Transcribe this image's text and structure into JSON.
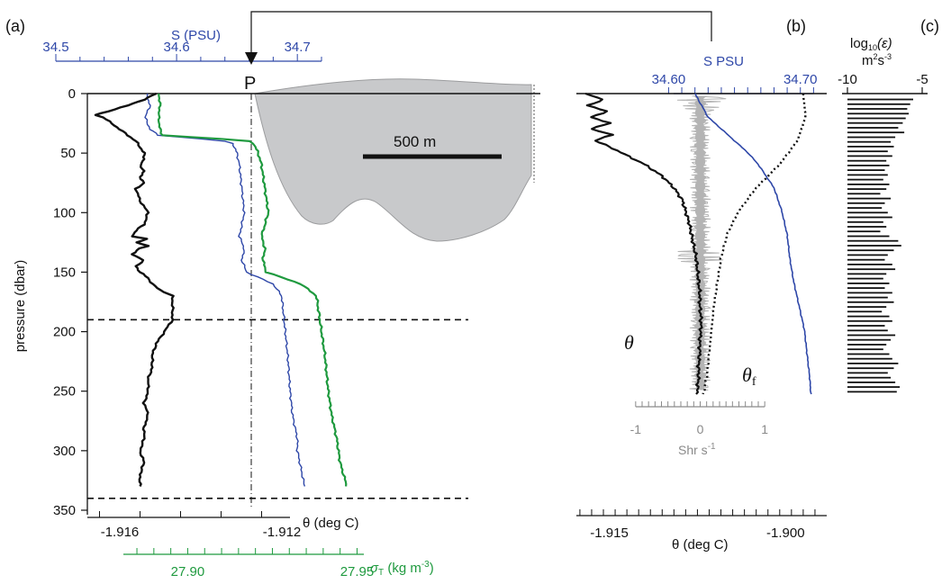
{
  "panel_labels": {
    "a": "(a)",
    "b": "(b)",
    "c": "(c)"
  },
  "colors": {
    "theta": "#111111",
    "salinity": "#2e47a8",
    "sigma": "#1f9a3f",
    "shear": "#b4b4b4",
    "ice": "#c8c9cb"
  },
  "chart_data": [
    {
      "type": "line",
      "panel": "(a)",
      "ylabel": "pressure (dbar)",
      "ylim": [
        350,
        0
      ],
      "yticks": [
        "0",
        "50",
        "100",
        "150",
        "200",
        "250",
        "300",
        "350"
      ],
      "x_theta": {
        "label": "θ (deg C)",
        "ticks": [
          "-1.916",
          "-1.912"
        ],
        "range": [
          -1.9168,
          -1.9118
        ]
      },
      "x_salinity": {
        "label": "S (PSU)",
        "ticks": [
          "34.5",
          "34.6",
          "34.7"
        ],
        "range": [
          34.5,
          34.72
        ]
      },
      "x_sigma": {
        "label": "σT (kg m-3)",
        "ticks": [
          "27.90",
          "27.95"
        ],
        "range": [
          27.881,
          27.952
        ]
      },
      "marker": {
        "label": "P",
        "theta": -1.9123
      },
      "hlines_dbar": [
        190,
        340
      ],
      "ice_inset": {
        "scale_label": "500 m"
      },
      "series": [
        {
          "name": "θ",
          "axis": "theta",
          "p": [
            0,
            5,
            10,
            15,
            18,
            20,
            25,
            30,
            35,
            40,
            45,
            50,
            55,
            60,
            65,
            70,
            75,
            80,
            90,
            100,
            110,
            115,
            120,
            122,
            125,
            128,
            130,
            135,
            140,
            145,
            150,
            155,
            160,
            165,
            170,
            180,
            190,
            200,
            210,
            220,
            230,
            240,
            250,
            260,
            270,
            280,
            290,
            300,
            310,
            320,
            330
          ],
          "values": [
            -1.9151,
            -1.9154,
            -1.9158,
            -1.9163,
            -1.9166,
            -1.9164,
            -1.9162,
            -1.916,
            -1.9158,
            -1.9156,
            -1.9155,
            -1.9154,
            -1.9154,
            -1.9155,
            -1.9154,
            -1.9155,
            -1.9154,
            -1.9156,
            -1.9155,
            -1.9153,
            -1.9154,
            -1.9156,
            -1.9157,
            -1.9153,
            -1.9156,
            -1.9153,
            -1.9155,
            -1.9157,
            -1.9154,
            -1.9156,
            -1.9155,
            -1.9153,
            -1.9152,
            -1.915,
            -1.9147,
            -1.9147,
            -1.9147,
            -1.9149,
            -1.9151,
            -1.9152,
            -1.9152,
            -1.9153,
            -1.9153,
            -1.9154,
            -1.9153,
            -1.9154,
            -1.9154,
            -1.9155,
            -1.9154,
            -1.9155,
            -1.9155
          ]
        },
        {
          "name": "S",
          "axis": "salinity",
          "p": [
            0,
            10,
            20,
            30,
            35,
            38,
            40,
            42,
            45,
            50,
            60,
            80,
            100,
            120,
            130,
            140,
            150,
            160,
            170,
            180,
            200,
            220,
            250,
            270,
            290,
            300,
            310,
            320,
            330
          ],
          "values": [
            34.575,
            34.578,
            34.574,
            34.578,
            34.585,
            34.62,
            34.64,
            34.646,
            34.648,
            34.65,
            34.652,
            34.654,
            34.656,
            34.652,
            34.656,
            34.654,
            34.658,
            34.68,
            34.687,
            34.688,
            34.69,
            34.692,
            34.694,
            34.696,
            34.7,
            34.7,
            34.702,
            34.704,
            34.706
          ]
        },
        {
          "name": "σT",
          "axis": "sigma",
          "p": [
            0,
            10,
            20,
            30,
            35,
            38,
            40,
            42,
            45,
            50,
            60,
            80,
            100,
            120,
            130,
            140,
            150,
            160,
            170,
            180,
            200,
            220,
            250,
            270,
            290,
            300,
            310,
            320,
            330
          ],
          "values": [
            27.8915,
            27.8918,
            27.8914,
            27.8918,
            27.8925,
            27.9095,
            27.918,
            27.9195,
            27.92,
            27.9208,
            27.9218,
            27.9228,
            27.9238,
            27.9218,
            27.9228,
            27.9222,
            27.9232,
            27.9335,
            27.938,
            27.9385,
            27.9395,
            27.9405,
            27.9415,
            27.9425,
            27.944,
            27.9445,
            27.945,
            27.946,
            27.947
          ]
        }
      ]
    },
    {
      "type": "line",
      "panel": "(b)",
      "x_theta": {
        "label": "θ (deg C)",
        "ticks": [
          "-1.915",
          "-1.900"
        ],
        "range": [
          -1.9178,
          -1.8965
        ]
      },
      "x_salinity": {
        "label": "S PSU",
        "ticks": [
          "34.60",
          "34.70"
        ],
        "range": [
          34.53,
          34.72
        ]
      },
      "x_shear": {
        "label": "Shr s-1",
        "ticks": [
          "-1",
          "0",
          "1"
        ],
        "range": [
          -1.5,
          1.5
        ]
      },
      "curve_labels": {
        "theta": "θ",
        "theta_f": "θ",
        "theta_f_sub": "f"
      },
      "series": [
        {
          "name": "θ",
          "axis": "theta",
          "p": [
            0,
            5,
            10,
            15,
            20,
            25,
            30,
            35,
            40,
            45,
            50,
            55,
            60,
            70,
            80,
            90,
            100,
            110,
            120,
            130,
            140,
            150,
            160,
            170,
            180,
            190,
            200,
            210,
            220,
            230,
            240,
            250,
            255
          ],
          "values": [
            -1.917,
            -1.9155,
            -1.9168,
            -1.9152,
            -1.9165,
            -1.915,
            -1.9165,
            -1.9148,
            -1.9162,
            -1.915,
            -1.914,
            -1.913,
            -1.912,
            -1.9105,
            -1.9095,
            -1.9088,
            -1.9085,
            -1.9082,
            -1.908,
            -1.9078,
            -1.9076,
            -1.9075,
            -1.9074,
            -1.9073,
            -1.9073,
            -1.9072,
            -1.9072,
            -1.9073,
            -1.9073,
            -1.9074,
            -1.9074,
            -1.9075,
            -1.9075
          ]
        },
        {
          "name": "θf",
          "axis": "theta",
          "p": [
            0,
            20,
            40,
            60,
            80,
            100,
            120,
            140,
            160,
            180,
            200,
            220,
            240,
            255
          ],
          "values": [
            -1.8985,
            -1.8983,
            -1.899,
            -1.9005,
            -1.9025,
            -1.904,
            -1.905,
            -1.9055,
            -1.9058,
            -1.9061,
            -1.9063,
            -1.9065,
            -1.9067,
            -1.907
          ]
        },
        {
          "name": "S",
          "axis": "salinity",
          "p": [
            0,
            10,
            20,
            30,
            40,
            50,
            60,
            80,
            100,
            120,
            140,
            160,
            180,
            200,
            220,
            240,
            255
          ],
          "values": [
            34.62,
            34.625,
            34.63,
            34.64,
            34.65,
            34.66,
            34.668,
            34.68,
            34.686,
            34.69,
            34.692,
            34.695,
            34.699,
            34.703,
            34.705,
            34.707,
            34.708
          ]
        }
      ]
    },
    {
      "type": "bar",
      "panel": "(c)",
      "xlabel": "log10(ε) m2s-3",
      "ticks": [
        "-10",
        "-5"
      ],
      "xlim": [
        -10,
        -5
      ],
      "p_start": 5,
      "p_step": 4,
      "values": [
        -5.6,
        -5.8,
        -6.0,
        -5.9,
        -6.1,
        -6.3,
        -6.6,
        -6.2,
        -6.8,
        -7.1,
        -6.9,
        -7.3,
        -7.0,
        -7.4,
        -7.2,
        -7.5,
        -7.3,
        -7.6,
        -7.2,
        -7.4,
        -7.8,
        -7.1,
        -7.5,
        -7.7,
        -7.3,
        -7.0,
        -7.6,
        -7.4,
        -7.8,
        -7.2,
        -6.6,
        -6.4,
        -6.9,
        -7.3,
        -7.5,
        -7.0,
        -6.8,
        -7.4,
        -7.6,
        -7.2,
        -7.5,
        -7.0,
        -7.3,
        -6.9,
        -7.4,
        -7.7,
        -7.2,
        -7.0,
        -7.5,
        -7.3,
        -6.8,
        -7.1,
        -7.4,
        -7.6,
        -7.2,
        -7.0,
        -6.6,
        -6.9,
        -7.3,
        -7.1,
        -6.8,
        -6.5,
        -6.7
      ]
    }
  ],
  "text": {
    "s_psu_a": "S (PSU)",
    "p_label": "P",
    "scale_500m": "500 m",
    "ylabel": "pressure (dbar)",
    "theta_axis_a": "θ (deg C)",
    "sigma_prefix": "σ",
    "sigma_sub": "T",
    "sigma_rest": " (kg m",
    "sigma_exp": "-3",
    "sigma_close": ")",
    "s_psu_b": "S PSU",
    "shr_label": "Shr s",
    "shr_exp": "-1",
    "theta_axis_b": "θ (deg C)",
    "theta_curve": "θ",
    "theta_f_curve": "θ",
    "theta_f_sub": "f",
    "eps_prefix": "log",
    "eps_sub": "10",
    "eps_rest": "(ε)",
    "eps_units": "m",
    "eps_units_exp1": "2",
    "eps_units_s": "s",
    "eps_units_exp2": "-3"
  }
}
